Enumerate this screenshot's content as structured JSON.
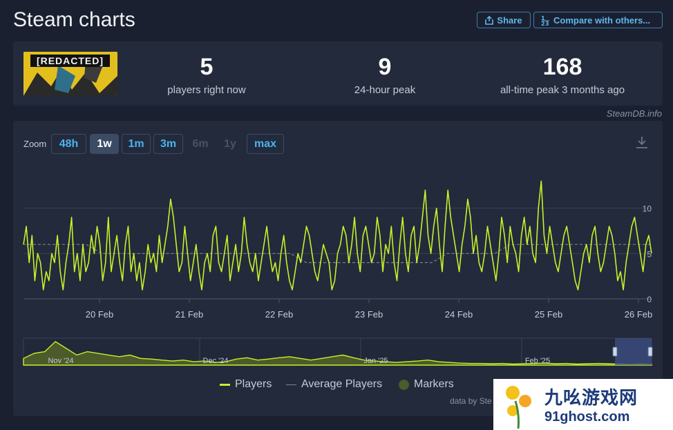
{
  "header": {
    "title": "Steam charts",
    "share_label": "Share",
    "compare_label": "Compare with others..."
  },
  "game": {
    "image_text": "[REDACTED]"
  },
  "stats": [
    {
      "value": "5",
      "label": "players right now"
    },
    {
      "value": "9",
      "label": "24-hour peak"
    },
    {
      "value": "168",
      "label": "all-time peak 3 months ago"
    }
  ],
  "credit": "SteamDB.info",
  "zoom": {
    "label": "Zoom",
    "options": [
      {
        "label": "48h",
        "state": "normal"
      },
      {
        "label": "1w",
        "state": "active"
      },
      {
        "label": "1m",
        "state": "normal"
      },
      {
        "label": "3m",
        "state": "normal"
      },
      {
        "label": "6m",
        "state": "disabled"
      },
      {
        "label": "1y",
        "state": "disabled"
      },
      {
        "label": "max",
        "state": "normal"
      }
    ]
  },
  "legend": {
    "players": "Players",
    "average": "Average Players",
    "markers": "Markers"
  },
  "data_source": "data by Ste",
  "watermark": {
    "line1": "九吆游戏网",
    "line2": "91ghost.com"
  },
  "colors": {
    "players": "#c6f12b",
    "average": "#7d838e",
    "markers": "#4d5a2a",
    "accent": "#49b4f0"
  },
  "icons": [
    "share-icon",
    "compare-icon",
    "download-icon"
  ],
  "chart_data": [
    {
      "type": "line",
      "x_ticks": [
        "20 Feb",
        "21 Feb",
        "22 Feb",
        "23 Feb",
        "24 Feb",
        "25 Feb",
        "26 Feb"
      ],
      "y_ticks": [
        0,
        5,
        10
      ],
      "ylim": [
        0,
        15
      ],
      "xlim": [
        0,
        7
      ],
      "grid": true,
      "series": [
        {
          "name": "Players",
          "values": [
            6,
            8,
            4,
            7,
            2,
            5,
            4,
            1,
            3,
            2,
            5,
            4,
            7,
            3,
            1,
            4,
            6,
            9,
            3,
            5,
            2,
            6,
            3,
            4,
            7,
            5,
            8,
            6,
            2,
            4,
            9,
            3,
            5,
            7,
            4,
            2,
            6,
            8,
            3,
            5,
            2,
            4,
            1,
            3,
            6,
            4,
            5,
            3,
            7,
            4,
            6,
            8,
            11,
            9,
            6,
            3,
            4,
            8,
            5,
            2,
            4,
            6,
            3,
            1,
            4,
            5,
            3,
            7,
            8,
            4,
            3,
            5,
            7,
            2,
            4,
            6,
            3,
            5,
            9,
            6,
            4,
            3,
            5,
            2,
            4,
            6,
            8,
            5,
            3,
            4,
            2,
            5,
            7,
            4,
            2,
            1,
            3,
            5,
            4,
            6,
            8,
            7,
            5,
            3,
            2,
            4,
            6,
            5,
            4,
            1,
            2,
            5,
            6,
            8,
            7,
            4,
            6,
            9,
            5,
            3,
            7,
            8,
            6,
            4,
            5,
            9,
            7,
            3,
            6,
            5,
            8,
            4,
            2,
            6,
            9,
            5,
            3,
            7,
            8,
            4,
            6,
            9,
            12,
            7,
            5,
            8,
            10,
            6,
            3,
            8,
            12,
            9,
            7,
            5,
            3,
            6,
            8,
            11,
            9,
            5,
            7,
            4,
            3,
            5,
            8,
            6,
            4,
            2,
            5,
            9,
            7,
            4,
            8,
            6,
            5,
            3,
            7,
            9,
            6,
            8,
            5,
            4,
            10,
            13,
            7,
            5,
            8,
            6,
            4,
            3,
            5,
            7,
            8,
            6,
            4,
            2,
            1,
            3,
            5,
            6,
            4,
            7,
            8,
            5,
            3,
            4,
            6,
            8,
            7,
            5,
            2,
            3,
            1,
            4,
            6,
            8,
            9,
            7,
            5,
            3,
            6,
            7,
            5
          ]
        },
        {
          "name": "Average Players",
          "values": [
            6,
            6,
            6,
            6,
            6,
            5,
            5,
            5,
            5,
            5,
            5,
            5,
            5,
            5,
            5,
            5,
            5,
            5,
            4,
            4,
            4,
            4,
            4,
            4,
            4,
            4,
            4,
            5,
            5,
            5,
            5,
            6,
            6,
            6,
            6,
            6,
            6,
            6,
            6,
            6,
            6
          ]
        }
      ]
    },
    {
      "type": "area",
      "x_ticks": [
        "Nov '24",
        "Dec '24",
        "Jan '25",
        "Feb '25"
      ],
      "series": [
        {
          "name": "Players",
          "values": [
            20,
            35,
            40,
            70,
            50,
            30,
            40,
            35,
            30,
            25,
            30,
            20,
            18,
            15,
            12,
            15,
            10,
            12,
            8,
            10,
            18,
            22,
            15,
            18,
            22,
            25,
            20,
            15,
            20,
            25,
            30,
            22,
            15,
            12,
            10,
            8,
            10,
            12,
            15,
            10,
            8,
            6,
            5,
            5,
            4,
            5,
            3,
            4,
            5,
            6,
            4,
            5,
            3,
            4,
            5,
            4,
            3,
            2,
            3,
            2
          ]
        }
      ]
    }
  ]
}
